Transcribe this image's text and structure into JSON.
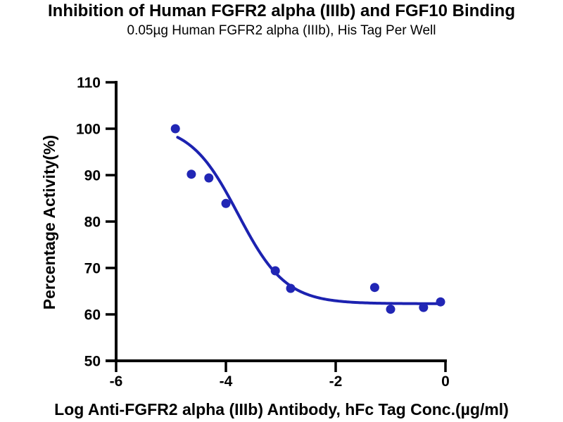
{
  "title": "Inhibition of Human FGFR2 alpha (IIIb) and FGF10 Binding",
  "subtitle": "0.05µg Human FGFR2 alpha (IIIb), His Tag Per Well",
  "chart_data": {
    "type": "scatter",
    "title": "Inhibition of Human FGFR2 alpha (IIIb) and FGF10 Binding",
    "subtitle": "0.05µg Human FGFR2 alpha (IIIb), His Tag Per Well",
    "xlabel": "Log Anti-FGFR2 alpha (IIIb) Antibody, hFc Tag Conc.(µg/ml)",
    "ylabel": "Percentage Activity(%)",
    "xlim": [
      -6,
      0
    ],
    "ylim": [
      50,
      110
    ],
    "xticks": [
      -6,
      -4,
      -2,
      0
    ],
    "yticks": [
      50,
      60,
      70,
      80,
      90,
      100,
      110
    ],
    "grid": false,
    "legend": null,
    "points": [
      [
        -4.92,
        100.0
      ],
      [
        -4.63,
        90.2
      ],
      [
        -4.31,
        89.4
      ],
      [
        -4.0,
        83.9
      ],
      [
        -3.1,
        69.4
      ],
      [
        -2.82,
        65.6
      ],
      [
        -1.29,
        65.8
      ],
      [
        -1.0,
        61.1
      ],
      [
        -0.4,
        61.5
      ],
      [
        -0.09,
        62.7
      ]
    ],
    "fit_curve": {
      "model": "4PL",
      "bottom": 62.3,
      "top": 101.0,
      "logIC50": -3.78,
      "hillslope": 1.0,
      "x_start": -4.88,
      "x_end": -0.09
    },
    "marker_color": "#2126b5",
    "line_color": "#1c22b0",
    "axis_color": "#000000"
  }
}
